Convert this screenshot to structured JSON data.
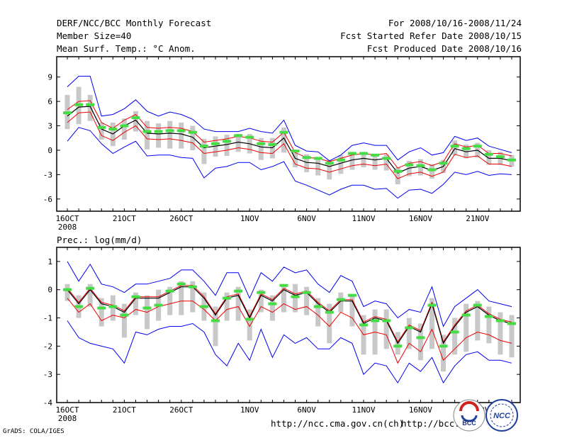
{
  "header": {
    "title": "DERF/NCC/BCC Monthly Forecast",
    "member_size": "Member Size=40",
    "variable": "Mean Surf. Temp.: °C Anom.",
    "period": "For 2008/10/16-2008/11/24",
    "started": "Fcst Started Refer Date 2008/10/15",
    "produced": "Fcst Produced Date 2008/10/16"
  },
  "colors": {
    "ensemble_box": "#c8c8c8",
    "observed_mark": "#44dd44",
    "max_min": "#0000ee",
    "spread_band": "#ee0000",
    "mean": "#000000"
  },
  "chart_data": [
    {
      "type": "line",
      "name": "temperature",
      "title": "Mean Surf. Temp.: °C Anom.",
      "x_labels": [
        "16OCT",
        "21OCT",
        "26OCT",
        "1NOV",
        "6NOV",
        "11NOV",
        "16NOV",
        "21NOV"
      ],
      "x_label_days": [
        0,
        5,
        10,
        16,
        21,
        26,
        31,
        36
      ],
      "year_label": "2008",
      "ylim": [
        -7.5,
        11.5
      ],
      "yticks": [
        -6,
        -3,
        0,
        3,
        6,
        9
      ],
      "days": 40,
      "series": [
        {
          "name": "ensemble_mean",
          "values": [
            4.2,
            5.3,
            5.4,
            2.6,
            2.0,
            3.0,
            3.7,
            2.1,
            2.0,
            2.1,
            2.0,
            1.6,
            0.3,
            0.5,
            0.7,
            1.0,
            0.8,
            0.4,
            0.3,
            1.5,
            -1.0,
            -1.5,
            -1.6,
            -2.0,
            -1.6,
            -1.2,
            -1.0,
            -1.2,
            -1.0,
            -2.8,
            -2.2,
            -2.0,
            -2.5,
            -2.0,
            0.2,
            -0.2,
            0.0,
            -1.0,
            -1.0,
            -1.3
          ]
        },
        {
          "name": "upper_band",
          "values": [
            5.0,
            6.0,
            6.1,
            3.4,
            2.7,
            3.7,
            4.4,
            2.8,
            2.7,
            2.8,
            2.7,
            2.3,
            1.0,
            1.2,
            1.4,
            1.7,
            1.5,
            1.1,
            1.0,
            2.2,
            -0.3,
            -0.9,
            -1.0,
            -1.4,
            -1.0,
            -0.6,
            -0.4,
            -0.6,
            -0.4,
            -2.2,
            -1.6,
            -1.4,
            -1.9,
            -1.4,
            0.8,
            0.4,
            0.6,
            -0.4,
            -0.4,
            -0.7
          ]
        },
        {
          "name": "lower_band",
          "values": [
            3.4,
            4.6,
            4.7,
            1.8,
            1.2,
            2.2,
            3.0,
            1.4,
            1.3,
            1.4,
            1.2,
            0.9,
            -0.4,
            -0.2,
            0.0,
            0.3,
            0.1,
            -0.3,
            -0.4,
            0.8,
            -1.7,
            -2.2,
            -2.3,
            -2.7,
            -2.3,
            -1.9,
            -1.7,
            -1.9,
            -1.7,
            -3.5,
            -2.9,
            -2.7,
            -3.2,
            -2.7,
            -0.5,
            -0.9,
            -0.7,
            -1.7,
            -1.7,
            -2.0
          ]
        },
        {
          "name": "ensemble_max",
          "values": [
            7.8,
            9.1,
            9.1,
            4.2,
            4.4,
            5.1,
            6.2,
            4.8,
            4.2,
            4.7,
            4.4,
            3.8,
            2.6,
            2.3,
            2.3,
            2.3,
            2.7,
            2.3,
            2.1,
            3.7,
            0.6,
            -0.1,
            -0.2,
            -1.3,
            -0.6,
            0.6,
            0.9,
            0.6,
            0.6,
            -1.2,
            -0.2,
            0.3,
            -0.6,
            -0.3,
            1.7,
            1.2,
            1.5,
            0.5,
            0.1,
            -0.3
          ]
        },
        {
          "name": "ensemble_min",
          "values": [
            1.1,
            2.8,
            2.4,
            0.8,
            -0.4,
            0.4,
            1.1,
            -0.7,
            -0.6,
            -0.6,
            -0.9,
            -1.0,
            -3.4,
            -2.2,
            -2.0,
            -1.5,
            -1.5,
            -2.4,
            -2.0,
            -1.4,
            -3.8,
            -4.3,
            -4.9,
            -5.5,
            -4.8,
            -4.3,
            -4.3,
            -4.8,
            -4.7,
            -5.9,
            -4.9,
            -4.8,
            -5.3,
            -4.2,
            -2.7,
            -3.0,
            -2.6,
            -3.1,
            -2.9,
            -3.0
          ]
        },
        {
          "name": "box_high",
          "values": [
            6.8,
            7.8,
            6.8,
            3.4,
            3.4,
            3.9,
            4.8,
            3.6,
            3.3,
            3.6,
            3.4,
            3.0,
            1.4,
            1.7,
            1.9,
            2.0,
            2.0,
            1.5,
            1.5,
            2.8,
            -0.2,
            -0.5,
            -0.9,
            -1.2,
            -0.6,
            -0.2,
            -0.2,
            -0.6,
            -0.5,
            -2.1,
            -1.3,
            -1.1,
            -1.7,
            -1.2,
            1.2,
            0.7,
            0.9,
            0.0,
            -0.2,
            -0.6
          ]
        },
        {
          "name": "box_low",
          "values": [
            2.6,
            3.2,
            3.6,
            1.3,
            0.5,
            1.3,
            2.3,
            0.1,
            0.3,
            0.2,
            0.2,
            0.0,
            -1.7,
            -0.8,
            -0.7,
            -0.2,
            -0.4,
            -1.2,
            -1.0,
            -0.3,
            -2.1,
            -2.7,
            -3.1,
            -3.6,
            -2.9,
            -2.4,
            -2.1,
            -2.4,
            -2.5,
            -4.2,
            -3.2,
            -3.1,
            -3.5,
            -2.8,
            -0.6,
            -1.0,
            -0.9,
            -1.8,
            -1.8,
            -2.0
          ]
        },
        {
          "name": "observed_marks",
          "values": [
            4.6,
            5.6,
            5.6,
            2.8,
            2.6,
            3.0,
            4.0,
            2.3,
            2.3,
            2.4,
            2.4,
            2.2,
            0.5,
            0.8,
            1.1,
            1.8,
            1.6,
            0.8,
            0.7,
            2.2,
            -0.1,
            -0.9,
            -1.0,
            -1.6,
            -1.2,
            -0.4,
            -0.4,
            -0.6,
            -1.0,
            -2.6,
            -1.8,
            -1.9,
            -2.4,
            -1.6,
            0.5,
            0.2,
            0.5,
            -0.5,
            -0.8,
            -1.2
          ]
        }
      ]
    },
    {
      "type": "line",
      "name": "precipitation",
      "title": "Prec.: log(mm/d)",
      "x_labels": [
        "16OCT",
        "21OCT",
        "26OCT",
        "1NOV",
        "6NOV",
        "11NOV",
        "16NOV",
        "21NOV"
      ],
      "x_label_days": [
        0,
        5,
        10,
        16,
        21,
        26,
        31,
        36
      ],
      "year_label": "2008",
      "ylim": [
        -4,
        1.5
      ],
      "yticks": [
        -4,
        -3,
        -2,
        -1,
        0,
        1
      ],
      "days": 40,
      "series": [
        {
          "name": "ensemble_mean",
          "values": [
            0.0,
            -0.5,
            0.0,
            -0.5,
            -0.6,
            -0.8,
            -0.3,
            -0.3,
            -0.3,
            -0.1,
            0.1,
            0.1,
            -0.3,
            -0.9,
            -0.3,
            -0.2,
            -1.0,
            -0.2,
            -0.4,
            0.0,
            -0.2,
            -0.1,
            -0.5,
            -0.8,
            -0.4,
            -0.4,
            -1.2,
            -1.0,
            -1.1,
            -1.9,
            -1.3,
            -1.5,
            -0.5,
            -1.9,
            -1.3,
            -0.8,
            -0.6,
            -0.9,
            -1.1,
            -1.2
          ]
        },
        {
          "name": "upper_band",
          "values": [
            0.05,
            -0.45,
            0.05,
            -0.45,
            -0.55,
            -0.75,
            -0.25,
            -0.25,
            -0.25,
            -0.05,
            0.15,
            0.15,
            -0.25,
            -0.85,
            -0.25,
            -0.15,
            -0.95,
            -0.15,
            -0.35,
            0.05,
            -0.15,
            -0.05,
            -0.45,
            -0.75,
            -0.35,
            -0.35,
            -1.15,
            -0.95,
            -1.05,
            -1.85,
            -1.25,
            -1.45,
            -0.45,
            -1.85,
            -1.25,
            -0.75,
            -0.55,
            -0.85,
            -1.05,
            -1.15
          ]
        },
        {
          "name": "lower_band",
          "values": [
            -0.3,
            -0.8,
            -0.5,
            -1.1,
            -0.9,
            -1.0,
            -0.7,
            -0.8,
            -0.6,
            -0.5,
            -0.4,
            -0.4,
            -0.7,
            -1.1,
            -0.7,
            -0.6,
            -1.3,
            -0.6,
            -0.8,
            -0.5,
            -0.7,
            -0.6,
            -0.9,
            -1.3,
            -0.8,
            -1.0,
            -1.6,
            -1.5,
            -1.6,
            -2.6,
            -1.9,
            -2.2,
            -1.4,
            -2.5,
            -2.1,
            -1.7,
            -1.5,
            -1.6,
            -1.8,
            -1.9
          ]
        },
        {
          "name": "ensemble_max",
          "values": [
            1.0,
            0.3,
            0.9,
            0.2,
            0.1,
            -0.1,
            0.2,
            0.2,
            0.3,
            0.4,
            0.7,
            0.7,
            0.3,
            -0.2,
            0.6,
            0.6,
            -0.3,
            0.6,
            0.3,
            0.8,
            0.6,
            0.7,
            0.2,
            -0.1,
            0.5,
            0.3,
            -0.6,
            -0.4,
            -0.5,
            -1.0,
            -0.7,
            -0.8,
            0.1,
            -1.3,
            -0.6,
            -0.3,
            0.0,
            -0.4,
            -0.5,
            -0.6
          ]
        },
        {
          "name": "ensemble_min",
          "values": [
            -1.1,
            -1.7,
            -1.9,
            -2.0,
            -2.1,
            -2.6,
            -1.5,
            -1.6,
            -1.4,
            -1.3,
            -1.3,
            -1.2,
            -1.5,
            -2.3,
            -2.7,
            -1.9,
            -2.5,
            -1.4,
            -2.4,
            -1.6,
            -1.9,
            -1.7,
            -2.1,
            -2.1,
            -1.7,
            -1.9,
            -3.0,
            -2.6,
            -2.7,
            -3.3,
            -2.6,
            -2.9,
            -2.4,
            -3.3,
            -2.7,
            -2.3,
            -2.2,
            -2.5,
            -2.5,
            -2.6
          ]
        },
        {
          "name": "box_high",
          "values": [
            0.2,
            -0.2,
            0.2,
            -0.3,
            -0.2,
            -0.5,
            -0.1,
            -0.2,
            0.0,
            0.1,
            0.3,
            0.3,
            -0.1,
            -0.6,
            -0.1,
            0.1,
            -0.7,
            0.0,
            -0.2,
            0.2,
            0.2,
            0.1,
            -0.3,
            -0.5,
            -0.1,
            -0.2,
            -0.9,
            -0.7,
            -0.7,
            -1.5,
            -1.0,
            -1.2,
            -0.3,
            -1.6,
            -1.0,
            -0.5,
            -0.4,
            -0.6,
            -0.8,
            -0.9
          ]
        },
        {
          "name": "box_low",
          "values": [
            -0.4,
            -1.0,
            -0.6,
            -1.3,
            -1.1,
            -1.7,
            -0.9,
            -1.4,
            -1.1,
            -0.9,
            -0.9,
            -0.8,
            -1.1,
            -2.0,
            -1.1,
            -1.1,
            -1.8,
            -0.8,
            -1.1,
            -0.8,
            -0.8,
            -0.9,
            -1.3,
            -1.9,
            -0.8,
            -1.3,
            -2.3,
            -2.3,
            -2.1,
            -2.3,
            -2.1,
            -2.5,
            -2.1,
            -2.9,
            -2.3,
            -2.2,
            -1.8,
            -1.9,
            -2.3,
            -2.4
          ]
        },
        {
          "name": "observed_marks",
          "values": [
            0.0,
            -0.6,
            0.05,
            -0.65,
            -0.6,
            -0.9,
            -0.25,
            -0.65,
            -0.55,
            -0.05,
            0.2,
            0.1,
            -0.6,
            -1.1,
            -0.3,
            -0.05,
            -1.05,
            -0.1,
            -0.5,
            0.15,
            -0.25,
            -0.1,
            -0.6,
            -0.8,
            -0.35,
            -0.2,
            -1.25,
            -1.1,
            -1.1,
            -2.0,
            -1.35,
            -1.7,
            -0.55,
            -2.0,
            -1.5,
            -0.9,
            -0.55,
            -0.95,
            -1.1,
            -1.2
          ]
        }
      ]
    }
  ],
  "footer": {
    "grads": "GrADS: COLA/IGES",
    "url1": "http://ncc.cma.gov.cn(ch)",
    "url2": "http://bcc.",
    "logo1": "BCC",
    "logo2": "NCC"
  }
}
